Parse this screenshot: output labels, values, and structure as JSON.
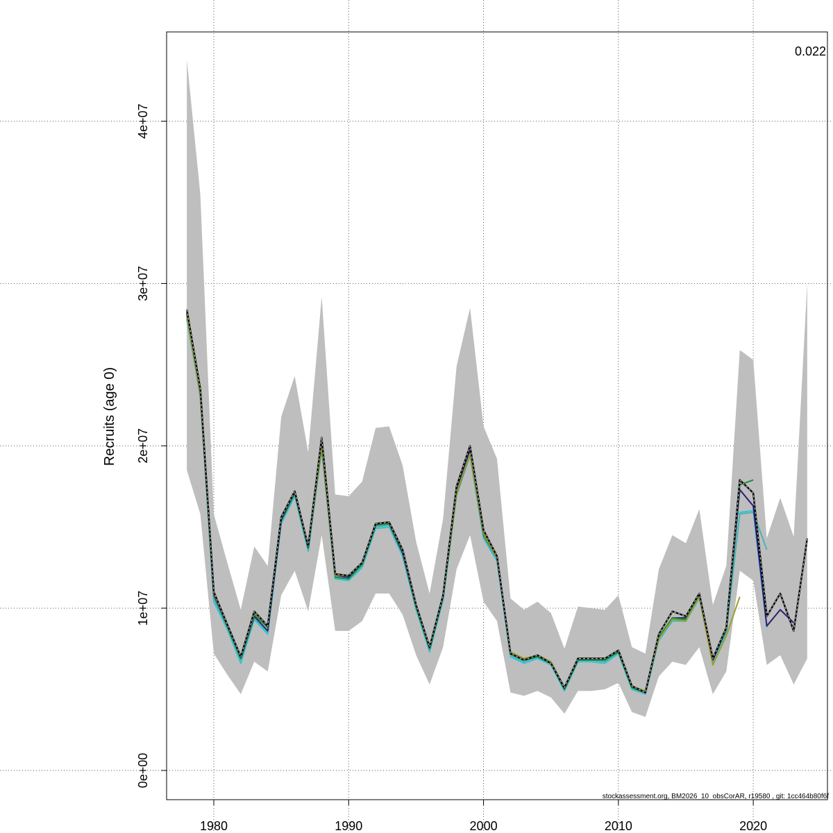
{
  "chart_data": {
    "type": "line",
    "ylabel": "Recruits (age 0)",
    "xlim": [
      1976.5,
      2025.5
    ],
    "ylim": [
      -1800000,
      45500000
    ],
    "xticks": [
      1980,
      1990,
      2000,
      2010,
      2020
    ],
    "xtick_labels": [
      "1980",
      "1990",
      "2000",
      "2010",
      "2020"
    ],
    "yticks": [
      0,
      10000000,
      20000000,
      30000000,
      40000000
    ],
    "ytick_labels": [
      "0e+00",
      "1e+07",
      "2e+07",
      "3e+07",
      "4e+07"
    ],
    "grid": true,
    "annotation": "0.022",
    "footer": "stockassessment.org, BM2026_10_obsCorAR, r19580 , git: 1cc464b80f6f",
    "confidence_band": {
      "color": "#bebebe",
      "x": [
        1978,
        1979,
        1980,
        1981,
        1982,
        1983,
        1984,
        1985,
        1986,
        1987,
        1988,
        1989,
        1990,
        1991,
        1992,
        1993,
        1994,
        1995,
        1996,
        1997,
        1998,
        1999,
        2000,
        2001,
        2002,
        2003,
        2004,
        2005,
        2006,
        2007,
        2008,
        2009,
        2010,
        2011,
        2012,
        2013,
        2014,
        2015,
        2016,
        2017,
        2018,
        2019,
        2020,
        2021,
        2022,
        2023,
        2024
      ],
      "upper": [
        43800000,
        35500000,
        15800000,
        12800000,
        9900000,
        13800000,
        12600000,
        21800000,
        24300000,
        19600000,
        29200000,
        17000000,
        16900000,
        17800000,
        21100000,
        21200000,
        18800000,
        14100000,
        10900000,
        15500000,
        24900000,
        28500000,
        21200000,
        19200000,
        10600000,
        9900000,
        10400000,
        9700000,
        7500000,
        10100000,
        10000000,
        9900000,
        10800000,
        7600000,
        7200000,
        12400000,
        14500000,
        14000000,
        16100000,
        10200000,
        12600000,
        25900000,
        25300000,
        14300000,
        16800000,
        14400000,
        30000000
      ],
      "lower": [
        18500000,
        15800000,
        7200000,
        5900000,
        4700000,
        6700000,
        6100000,
        10800000,
        12300000,
        9800000,
        14500000,
        8600000,
        8600000,
        9200000,
        10900000,
        10900000,
        9600000,
        7100000,
        5300000,
        7600000,
        12400000,
        14500000,
        10400000,
        9200000,
        4800000,
        4600000,
        4900000,
        4500000,
        3500000,
        4900000,
        4900000,
        5000000,
        5400000,
        3600000,
        3300000,
        5800000,
        6700000,
        6500000,
        7600000,
        4700000,
        6100000,
        12300000,
        11700000,
        6500000,
        7100000,
        5300000,
        6900000
      ]
    },
    "series": [
      {
        "color": "#31c4d8",
        "width": 2,
        "x": [
          1978,
          1979,
          1980,
          1981,
          1982,
          1983,
          1984,
          1985,
          1986,
          1987,
          1988,
          1989,
          1990,
          1991,
          1992,
          1993,
          1994,
          1995,
          1996,
          1997,
          1998,
          1999,
          2000,
          2001,
          2002,
          2003,
          2004,
          2005,
          2006,
          2007,
          2008,
          2009,
          2010,
          2011,
          2012,
          2013,
          2014,
          2015,
          2016,
          2017,
          2018,
          2019,
          2020,
          2021
        ],
        "y": [
          27800000,
          23000000,
          10400000,
          8700000,
          6600000,
          9300000,
          8400000,
          15200000,
          16900000,
          13500000,
          19800000,
          11800000,
          11700000,
          12500000,
          14900000,
          15000000,
          13200000,
          9900000,
          7300000,
          10500000,
          17000000,
          19400000,
          14300000,
          12900000,
          7000000,
          6600000,
          6900000,
          6500000,
          4900000,
          6700000,
          6700000,
          6600000,
          7200000,
          5000000,
          4700000,
          8000000,
          9200000,
          9200000,
          10600000,
          6700000,
          8500000,
          15900000,
          16000000,
          8800000
        ]
      },
      {
        "color": "#4fb3b0",
        "width": 2,
        "x": [
          1978,
          1979,
          1980,
          1981,
          1982,
          1983,
          1984,
          1985,
          1986,
          1987,
          1988,
          1989,
          1990,
          1991,
          1992,
          1993,
          1994,
          1995,
          1996,
          1997,
          1998,
          1999,
          2000,
          2001,
          2002,
          2003,
          2004,
          2005,
          2006,
          2007,
          2008,
          2009,
          2010,
          2011,
          2012,
          2013,
          2014,
          2015,
          2016,
          2017,
          2018,
          2019,
          2020,
          2021
        ],
        "y": [
          27900000,
          23100000,
          10600000,
          8800000,
          6800000,
          9400000,
          8500000,
          15300000,
          17000000,
          13600000,
          19900000,
          11900000,
          11800000,
          12600000,
          15000000,
          15100000,
          13300000,
          10000000,
          7400000,
          10600000,
          17100000,
          19400000,
          14400000,
          13000000,
          7100000,
          6700000,
          7000000,
          6600000,
          5000000,
          6800000,
          6800000,
          6700000,
          7300000,
          5100000,
          4800000,
          8100000,
          9300000,
          9300000,
          10700000,
          6800000,
          8600000,
          15800000,
          15900000,
          13600000
        ]
      },
      {
        "color": "#2c1f7a",
        "width": 2,
        "x": [
          1978,
          1979,
          1980,
          1981,
          1982,
          1983,
          1984,
          1985,
          1986,
          1987,
          1988,
          1989,
          1990,
          1991,
          1992,
          1993,
          1994,
          1995,
          1996,
          1997,
          1998,
          1999,
          2000,
          2001,
          2002,
          2003,
          2004,
          2005,
          2006,
          2007,
          2008,
          2009,
          2010,
          2011,
          2012,
          2013,
          2014,
          2015,
          2016,
          2017,
          2018,
          2019,
          2020,
          2021,
          2022,
          2023
        ],
        "y": [
          28200000,
          23300000,
          10800000,
          8900000,
          6900000,
          9500000,
          8600000,
          15400000,
          17100000,
          13700000,
          20100000,
          12000000,
          11900000,
          12700000,
          15100000,
          15200000,
          13400000,
          10100000,
          7500000,
          10700000,
          17200000,
          19700000,
          14500000,
          13100000,
          7200000,
          6800000,
          7000000,
          6600000,
          5000000,
          6800000,
          6800000,
          6800000,
          7300000,
          5100000,
          4800000,
          8200000,
          9400000,
          9400000,
          10800000,
          6800000,
          8700000,
          17300000,
          16300000,
          8900000,
          9900000,
          9100000
        ]
      },
      {
        "color": "#178f3c",
        "width": 2,
        "x": [
          1978,
          1979,
          1980,
          1981,
          1982,
          1983,
          1984,
          1985,
          1986,
          1987,
          1988,
          1989,
          1990,
          1991,
          1992,
          1993,
          1994,
          1995,
          1996,
          1997,
          1998,
          1999,
          2000,
          2001,
          2002,
          2003,
          2004,
          2005,
          2006,
          2007,
          2008,
          2009,
          2010,
          2011,
          2012,
          2013,
          2014,
          2015,
          2016,
          2017,
          2018,
          2019,
          2020
        ],
        "y": [
          28100000,
          23200000,
          10900000,
          8900000,
          6900000,
          9600000,
          8800000,
          15500000,
          17100000,
          13700000,
          19900000,
          11900000,
          11800000,
          12700000,
          15100000,
          15200000,
          13500000,
          10100000,
          7500000,
          10700000,
          17000000,
          19500000,
          14500000,
          13100000,
          7200000,
          6800000,
          7000000,
          6600000,
          5000000,
          6800000,
          6800000,
          6800000,
          7300000,
          5100000,
          4800000,
          8200000,
          9400000,
          9300000,
          10800000,
          6900000,
          8700000,
          17600000,
          17900000
        ]
      },
      {
        "color": "#9c9d2e",
        "width": 2,
        "x": [
          1978,
          1979,
          1980,
          1981,
          1982,
          1983,
          1984,
          1985,
          1986,
          1987,
          1988,
          1989,
          1990,
          1991,
          1992,
          1993,
          1994,
          1995,
          1996,
          1997,
          1998,
          1999,
          2000,
          2001,
          2002,
          2003,
          2004,
          2005,
          2006,
          2007,
          2008,
          2009,
          2010,
          2011,
          2012,
          2013,
          2014,
          2015,
          2016,
          2017,
          2018,
          2019
        ],
        "y": [
          28000000,
          23100000,
          10900000,
          9000000,
          7000000,
          9700000,
          8900000,
          15600000,
          17200000,
          13800000,
          20000000,
          12000000,
          12000000,
          12800000,
          15200000,
          15300000,
          13600000,
          10200000,
          7600000,
          10800000,
          17100000,
          19500000,
          14600000,
          13100000,
          7300000,
          6900000,
          7100000,
          6700000,
          5100000,
          6900000,
          6900000,
          6900000,
          7400000,
          5200000,
          4900000,
          8100000,
          9300000,
          9200000,
          10700000,
          6500000,
          8300000,
          10700000
        ]
      },
      {
        "color": "#000000",
        "width": 2.4,
        "x": [
          1978,
          1979,
          1980,
          1981,
          1982,
          1983,
          1984,
          1985,
          1986,
          1987,
          1988,
          1989,
          1990,
          1991,
          1992,
          1993,
          1994,
          1995,
          1996,
          1997,
          1998,
          1999,
          2000,
          2001,
          2002,
          2003,
          2004,
          2005,
          2006,
          2007,
          2008,
          2009,
          2010,
          2011,
          2012,
          2013,
          2014,
          2015,
          2016,
          2017,
          2018,
          2019,
          2020,
          2021,
          2022,
          2023,
          2024
        ],
        "y": [
          28400000,
          23500000,
          11000000,
          9000000,
          7000000,
          9800000,
          8900000,
          15600000,
          17200000,
          13800000,
          20500000,
          12100000,
          12000000,
          12800000,
          15200000,
          15300000,
          13600000,
          10200000,
          7600000,
          10800000,
          17500000,
          20000000,
          14800000,
          13200000,
          7200000,
          6800000,
          7100000,
          6600000,
          5100000,
          6900000,
          6900000,
          6900000,
          7400000,
          5200000,
          4800000,
          8400000,
          9800000,
          9500000,
          10900000,
          6900000,
          8800000,
          17900000,
          17100000,
          9500000,
          10900000,
          8600000,
          14300000
        ]
      },
      {
        "color": "#bbbbbb",
        "width": 1.2,
        "dash": "3,3",
        "x": [
          1978,
          1979,
          1980,
          1981,
          1982,
          1983,
          1984,
          1985,
          1986,
          1987,
          1988,
          1989,
          1990,
          1991,
          1992,
          1993,
          1994,
          1995,
          1996,
          1997,
          1998,
          1999,
          2000,
          2001,
          2002,
          2003,
          2004,
          2005,
          2006,
          2007,
          2008,
          2009,
          2010,
          2011,
          2012,
          2013,
          2014,
          2015,
          2016,
          2017,
          2018,
          2019,
          2020,
          2021,
          2022,
          2023,
          2024
        ],
        "y": [
          28400000,
          23500000,
          11000000,
          9000000,
          7000000,
          9800000,
          8900000,
          15600000,
          17200000,
          13800000,
          20500000,
          12100000,
          12000000,
          12800000,
          15200000,
          15300000,
          13600000,
          10200000,
          7600000,
          10800000,
          17500000,
          20000000,
          14800000,
          13200000,
          7200000,
          6800000,
          7100000,
          6600000,
          5100000,
          6900000,
          6900000,
          6900000,
          7400000,
          5200000,
          4800000,
          8400000,
          9800000,
          9500000,
          10900000,
          6900000,
          8800000,
          17900000,
          17100000,
          9500000,
          10900000,
          8600000,
          14300000
        ]
      }
    ]
  }
}
